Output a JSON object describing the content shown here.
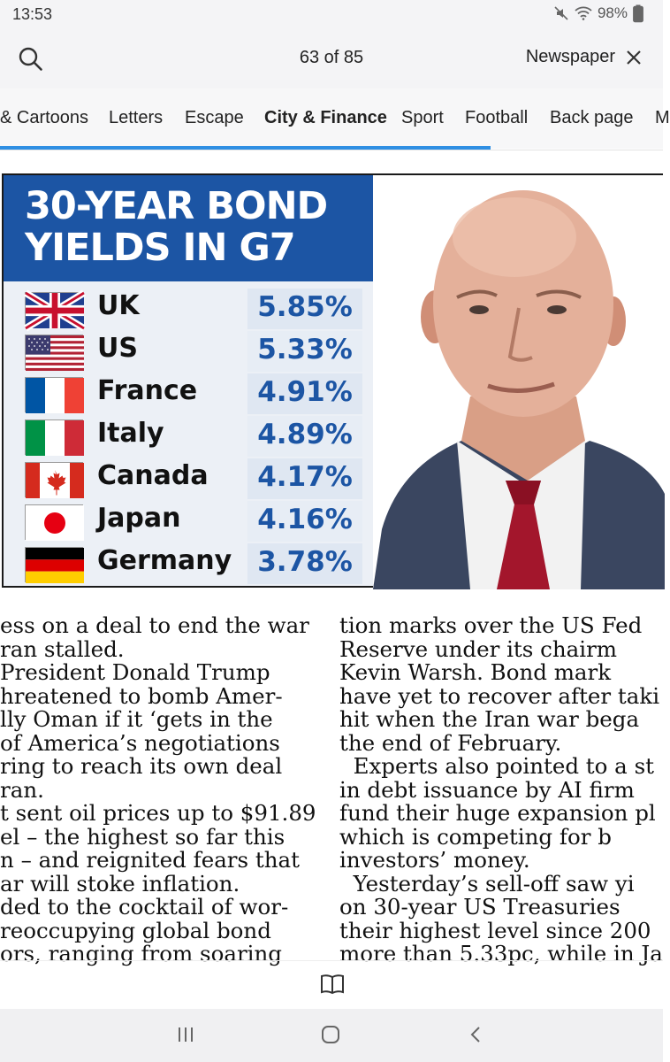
{
  "status": {
    "time": "13:53",
    "battery": "98%"
  },
  "appbar": {
    "page_indicator": "63 of 85",
    "newspaper_label": "Newspaper"
  },
  "tabs": [
    {
      "label": "& Cartoons"
    },
    {
      "label": "Letters"
    },
    {
      "label": "Escape"
    },
    {
      "label": "City & Finance",
      "active": true
    },
    {
      "label": "Sport"
    },
    {
      "label": "Football"
    },
    {
      "label": "Back page"
    },
    {
      "label": "M"
    }
  ],
  "graphic": {
    "title_line1": "30-YEAR BOND",
    "title_line2": "YIELDS IN G7",
    "rows": [
      {
        "country": "UK",
        "value": "5.85%",
        "flag": "uk-flag"
      },
      {
        "country": "US",
        "value": "5.33%",
        "flag": "us-flag"
      },
      {
        "country": "France",
        "value": "4.91%",
        "flag": "france-flag"
      },
      {
        "country": "Italy",
        "value": "4.89%",
        "flag": "italy-flag"
      },
      {
        "country": "Canada",
        "value": "4.17%",
        "flag": "canada-flag"
      },
      {
        "country": "Japan",
        "value": "4.16%",
        "flag": "japan-flag"
      },
      {
        "country": "Germany",
        "value": "3.78%",
        "flag": "germany-flag"
      }
    ]
  },
  "article": {
    "col1": [
      "ess on a deal to end the war",
      "ran stalled.",
      "President Donald Trump",
      "hreatened to bomb Amer-",
      "lly Oman if it ‘gets in the",
      "of America’s negotiations",
      "ring to reach its own deal",
      "ran.",
      "t sent oil prices up to $91.89",
      "el – the highest so far this",
      "n – and reignited fears that",
      "ar will stoke inflation.",
      "ded to the cocktail of wor-",
      "reoccupying global bond",
      "ors, ranging from soaring"
    ],
    "col2": [
      "tion marks over the US Fed",
      "Reserve under its chairm",
      "Kevin Warsh. Bond mark",
      "have yet to recover after taki",
      "hit when the Iran war bega",
      "the end of February.",
      "  Experts also pointed to a st",
      "in debt issuance by AI firm",
      "fund their huge expansion pl",
      "which is competing for b",
      "investors’ money.",
      "  Yesterday’s sell-off saw yi",
      "on 30-year US Treasuries",
      "their highest level since 200",
      "more than 5.33pc, while in Ja"
    ]
  },
  "colors": {
    "accent": "#2f8fe3",
    "headline_blue": "#1c55a4"
  }
}
